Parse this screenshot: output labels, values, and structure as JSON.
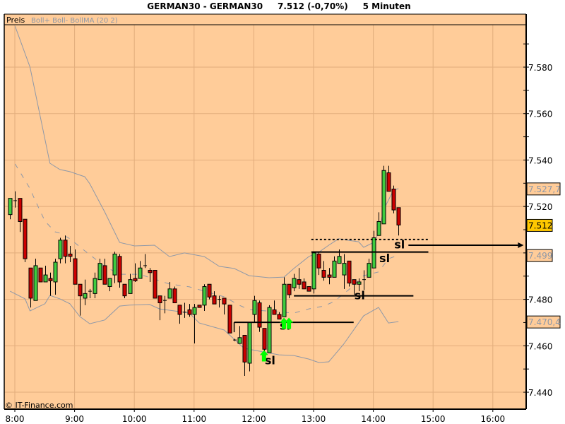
{
  "header": {
    "title": "GERMAN30 - GERMAN30     7.512 (-0,70%)     5 Minuten",
    "legend_price": "Preis",
    "legend_indicators": "Boll+ Boll- BollMA (20 2)"
  },
  "footer": {
    "copyright": "© IT-Finance.com"
  },
  "colors": {
    "background": "#FFCC99",
    "grid": "#E2AD7C",
    "up_candle": "#3FCC3F",
    "down_candle": "#CC0000",
    "bands": "#8E98A8",
    "last_price_box": "#FFC800",
    "signal_arrow": "#00FF00"
  },
  "chart_data": {
    "type": "candlestick",
    "interval": "5 Minuten",
    "xlabel": "",
    "ylabel": "",
    "x_ticks": [
      "8:00",
      "9:00",
      "10:00",
      "11:00",
      "12:00",
      "13:00",
      "14:00",
      "15:00",
      "16:00"
    ],
    "y_ticks": [
      "7.580",
      "7.560",
      "7.540",
      "7.520",
      "7.480",
      "7.460",
      "7.440"
    ],
    "ylim": [
      7434,
      7598
    ],
    "grid": true,
    "candles_ohlc": [
      [
        7516.5,
        7523.5,
        7514.5,
        7523.5
      ],
      [
        7522.5,
        7526.5,
        7519.5,
        7522.5
      ],
      [
        7523.5,
        7523.5,
        7509,
        7513.5
      ],
      [
        7514.5,
        7514.5,
        7496,
        7497.5
      ],
      [
        7493.5,
        7493.5,
        7476.5,
        7480.5
      ],
      [
        7479.5,
        7497.5,
        7479.5,
        7494.5
      ],
      [
        7493.5,
        7493.5,
        7487.5,
        7487.5
      ],
      [
        7487.5,
        7494.5,
        7487.5,
        7490.5
      ],
      [
        7489,
        7491.5,
        7481.5,
        7488
      ],
      [
        7487.5,
        7497.5,
        7482,
        7496
      ],
      [
        7497.5,
        7506.5,
        7495.5,
        7505.5
      ],
      [
        7505.5,
        7507.5,
        7495.5,
        7498.5
      ],
      [
        7499.5,
        7503,
        7496,
        7498.5
      ],
      [
        7497.5,
        7501.5,
        7486.5,
        7486.5
      ],
      [
        7486.5,
        7486.5,
        7473,
        7481.5
      ],
      [
        7480.5,
        7488.5,
        7477.5,
        7482.5
      ],
      [
        7483.5,
        7484.5,
        7480.5,
        7483.5
      ],
      [
        7482.5,
        7491.5,
        7480.5,
        7489
      ],
      [
        7488.5,
        7497.5,
        7488.5,
        7495.5
      ],
      [
        7494.5,
        7497.5,
        7486.5,
        7486.5
      ],
      [
        7485.5,
        7489,
        7483.5,
        7489
      ],
      [
        7490.5,
        7500.5,
        7487,
        7499.5
      ],
      [
        7498.5,
        7499.5,
        7485,
        7487.5
      ],
      [
        7486.5,
        7486.5,
        7480.5,
        7481.5
      ],
      [
        7482.5,
        7491,
        7482.5,
        7488.5
      ],
      [
        7489,
        7495.5,
        7487.5,
        7488
      ],
      [
        7489,
        7496.5,
        7489,
        7493.5
      ],
      [
        7494.5,
        7499.5,
        7493.5,
        7494.5
      ],
      [
        7492.5,
        7493.5,
        7487.5,
        7491.5
      ],
      [
        7492.5,
        7492.5,
        7480.5,
        7480.5
      ],
      [
        7481.5,
        7481.5,
        7471,
        7478.5
      ],
      [
        7479.5,
        7481.5,
        7474,
        7479.5
      ],
      [
        7480.5,
        7487.5,
        7480.5,
        7484.5
      ],
      [
        7484.5,
        7485.5,
        7478.5,
        7478.5
      ],
      [
        7477.5,
        7477.5,
        7469.5,
        7473.5
      ],
      [
        7474.5,
        7478.5,
        7472,
        7475
      ],
      [
        7475.5,
        7478,
        7472.5,
        7473.5
      ],
      [
        7473.5,
        7478,
        7461,
        7476.5
      ],
      [
        7477.5,
        7477.5,
        7476.5,
        7476.5
      ],
      [
        7477.5,
        7486.5,
        7475,
        7485.5
      ],
      [
        7486.5,
        7486.5,
        7480,
        7481
      ],
      [
        7481.5,
        7483.5,
        7478,
        7478
      ],
      [
        7480,
        7481.5,
        7476.5,
        7480
      ],
      [
        7480.5,
        7480.5,
        7473.5,
        7478
      ],
      [
        7477.5,
        7477.5,
        7465.5,
        7465.5
      ],
      [
        7462.5,
        7463,
        7462,
        7462.5
      ],
      [
        7461,
        7468.5,
        7461,
        7463.5
      ],
      [
        7464.5,
        7464.5,
        7447,
        7453
      ],
      [
        7452.5,
        7470,
        7449,
        7470
      ],
      [
        7473.5,
        7481.5,
        7470,
        7479.5
      ],
      [
        7478.5,
        7479.5,
        7466,
        7468
      ],
      [
        7467.5,
        7467.5,
        7457.5,
        7458.5
      ],
      [
        7457,
        7477.5,
        7457,
        7476.5
      ],
      [
        7475.5,
        7479.5,
        7473.5,
        7473.5
      ],
      [
        7473.5,
        7474.5,
        7471.5,
        7471.5
      ],
      [
        7472.5,
        7489.5,
        7472.5,
        7486.5
      ],
      [
        7486.5,
        7486.5,
        7480.5,
        7482
      ],
      [
        7485,
        7491,
        7483.5,
        7489
      ],
      [
        7488.5,
        7493.5,
        7484.5,
        7486.5
      ],
      [
        7487.5,
        7489,
        7484.5,
        7484.5
      ],
      [
        7485.5,
        7485.5,
        7483.5,
        7483.5
      ],
      [
        7484.5,
        7500,
        7482.5,
        7500
      ],
      [
        7499.5,
        7500.5,
        7490.5,
        7493.5
      ],
      [
        7492.5,
        7496.5,
        7488,
        7489.5
      ],
      [
        7490.5,
        7493.5,
        7486.5,
        7489.5
      ],
      [
        7489.5,
        7498.5,
        7489.5,
        7496.5
      ],
      [
        7495.5,
        7501.5,
        7495.5,
        7498.5
      ],
      [
        7490.5,
        7499.5,
        7484.5,
        7495.5
      ],
      [
        7496.5,
        7496.5,
        7485.5,
        7487
      ],
      [
        7488.5,
        7488.5,
        7482,
        7486.5
      ],
      [
        7486.5,
        7489,
        7483.5,
        7487.5
      ],
      [
        7488.5,
        7492.5,
        7484,
        7488.5
      ],
      [
        7489.5,
        7497.5,
        7489.5,
        7495.5
      ],
      [
        7493.5,
        7509.5,
        7493.5,
        7506.5
      ],
      [
        7507.5,
        7517.5,
        7507.5,
        7513.5
      ],
      [
        7512.5,
        7537.5,
        7512.5,
        7535.5
      ],
      [
        7534.5,
        7537.5,
        7526.5,
        7526.5
      ],
      [
        7527.5,
        7529,
        7517,
        7518.5
      ],
      [
        7519.5,
        7519.5,
        7507.5,
        7512
      ]
    ],
    "bollinger": {
      "period": 20,
      "deviation": 2,
      "upper": [
        [
          1,
          7597.6
        ],
        [
          4,
          7580
        ],
        [
          8,
          7538.6
        ],
        [
          10,
          7535.9
        ],
        [
          12,
          7535
        ],
        [
          15,
          7532.8
        ],
        [
          16,
          7529.8
        ],
        [
          19,
          7517.6
        ],
        [
          22,
          7504.5
        ],
        [
          25,
          7503
        ],
        [
          29,
          7503.3
        ],
        [
          32,
          7498.4
        ],
        [
          35,
          7500
        ],
        [
          39,
          7498.4
        ],
        [
          42,
          7494.2
        ],
        [
          45,
          7493.3
        ],
        [
          48,
          7490.2
        ],
        [
          52,
          7489.3
        ],
        [
          55,
          7489.6
        ],
        [
          57,
          7493.3
        ],
        [
          60,
          7498.4
        ],
        [
          62,
          7500.3
        ],
        [
          64,
          7503.3
        ],
        [
          66,
          7506.1
        ],
        [
          68,
          7505.4
        ],
        [
          70,
          7504.8
        ],
        [
          71,
          7502.4
        ],
        [
          73,
          7504.5
        ],
        [
          74,
          7508.5
        ],
        [
          75,
          7518.5
        ],
        [
          77,
          7527
        ],
        [
          78,
          7527.7
        ]
      ],
      "middle": [
        [
          1,
          7538.3
        ],
        [
          4,
          7527.7
        ],
        [
          5,
          7522.8
        ],
        [
          7,
          7513.7
        ],
        [
          9,
          7509.1
        ],
        [
          10,
          7508.5
        ],
        [
          12,
          7506.1
        ],
        [
          15,
          7500.9
        ],
        [
          19,
          7494.2
        ],
        [
          22,
          7490.8
        ],
        [
          26,
          7490.8
        ],
        [
          29,
          7488.7
        ],
        [
          32,
          7486.6
        ],
        [
          36,
          7485.4
        ],
        [
          43,
          7481.1
        ],
        [
          46,
          7477.5
        ],
        [
          48,
          7475.6
        ],
        [
          57,
          7474.1
        ],
        [
          60,
          7475.9
        ],
        [
          63,
          7477.1
        ],
        [
          65,
          7479
        ],
        [
          68,
          7484.1
        ],
        [
          71,
          7490.2
        ],
        [
          74,
          7491.8
        ],
        [
          76,
          7497.5
        ],
        [
          78,
          7499
        ]
      ],
      "lower": [
        [
          0,
          7483.5
        ],
        [
          3,
          7480.2
        ],
        [
          4,
          7475
        ],
        [
          7,
          7478.1
        ],
        [
          8,
          7481.7
        ],
        [
          10,
          7480.2
        ],
        [
          12,
          7478.1
        ],
        [
          14,
          7472.6
        ],
        [
          16,
          7469.5
        ],
        [
          19,
          7471.1
        ],
        [
          22,
          7477.1
        ],
        [
          24,
          7477.5
        ],
        [
          28,
          7477.8
        ],
        [
          30,
          7475.9
        ],
        [
          33,
          7475
        ],
        [
          36,
          7474.1
        ],
        [
          38,
          7469.8
        ],
        [
          43,
          7466.8
        ],
        [
          47,
          7458.9
        ],
        [
          50,
          7457.7
        ],
        [
          54,
          7456.1
        ],
        [
          57,
          7455.8
        ],
        [
          60,
          7454.3
        ],
        [
          62,
          7452.8
        ],
        [
          64,
          7453.1
        ],
        [
          67,
          7460.7
        ],
        [
          71,
          7472.9
        ],
        [
          74,
          7476.5
        ],
        [
          76,
          7469.8
        ],
        [
          78,
          7470.4
        ]
      ]
    },
    "price_labels": {
      "upper_band": "7.527,7",
      "last_price": "7.512",
      "middle_band": "7.499",
      "lower_band": "7.470,4"
    },
    "annotations": {
      "lines": [
        {
          "price": 7470.1,
          "from": 45,
          "to": 69,
          "style": "solid"
        },
        {
          "price": 7500.4,
          "from": 60.5,
          "to": 84,
          "style": "solid"
        },
        {
          "price": 7481.5,
          "from": 57,
          "to": 81,
          "style": "solid"
        },
        {
          "price": 7505.8,
          "from": 60.5,
          "to": 84,
          "style": "dotted"
        },
        {
          "price": 7503.3,
          "from": 80,
          "to": 102,
          "style": "arrow"
        }
      ],
      "labels": [
        {
          "text": "sl",
          "at": 52,
          "price": 7452
        },
        {
          "text": "sl",
          "at": 55,
          "price": 7467
        },
        {
          "text": "sl",
          "at": 70,
          "price": 7480
        },
        {
          "text": "sl",
          "at": 75,
          "price": 7496
        },
        {
          "text": "sl",
          "at": 78,
          "price": 7502
        }
      ],
      "buy_arrows": [
        {
          "at": 51,
          "price": 7456
        },
        {
          "at": 55,
          "price": 7470
        },
        {
          "at": 56,
          "price": 7470
        }
      ]
    }
  }
}
